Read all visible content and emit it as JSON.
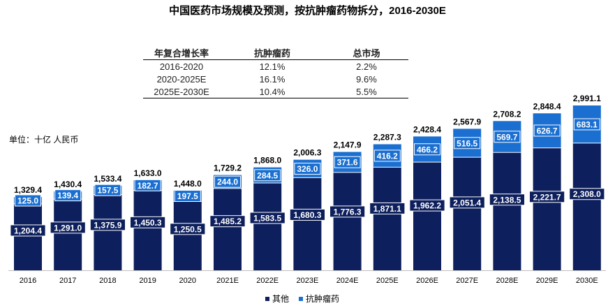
{
  "title": "中国医药市场规模及预测，按抗肿瘤药物拆分，2016-2030E",
  "unit_label": "单位：十亿 人民币",
  "cagr_table": {
    "headers": [
      "年复合增长率",
      "抗肿瘤药",
      "总市场"
    ],
    "rows": [
      [
        "2016-2020",
        "12.1%",
        "2.2%"
      ],
      [
        "2020-2025E",
        "16.1%",
        "9.6%"
      ],
      [
        "2025E-2030E",
        "10.4%",
        "5.5%"
      ]
    ]
  },
  "colors": {
    "other": "#0d1f5c",
    "oncology": "#1a6fd1"
  },
  "chart_data": {
    "type": "bar",
    "stacked": true,
    "categories": [
      "2016",
      "2017",
      "2018",
      "2019",
      "2020",
      "2021E",
      "2022E",
      "2023E",
      "2024E",
      "2025E",
      "2026E",
      "2027E",
      "2028E",
      "2029E",
      "2030E"
    ],
    "series": [
      {
        "name": "其他",
        "values": [
          1204.4,
          1291.0,
          1375.9,
          1450.3,
          1250.5,
          1485.2,
          1583.5,
          1680.3,
          1776.3,
          1871.1,
          1962.2,
          2051.4,
          2138.5,
          2221.7,
          2308.0
        ],
        "labels": [
          "1,204.4",
          "1,291.0",
          "1,375.9",
          "1,450.3",
          "1,250.5",
          "1,485.2",
          "1,583.5",
          "1,680.3",
          "1,776.3",
          "1,871.1",
          "1,962.2",
          "2,051.4",
          "2,138.5",
          "2,221.7",
          "2,308.0"
        ]
      },
      {
        "name": "抗肿瘤药",
        "values": [
          125.0,
          139.4,
          157.5,
          182.7,
          197.5,
          244.0,
          284.5,
          326.0,
          371.6,
          416.2,
          466.2,
          516.5,
          569.7,
          626.7,
          683.1
        ],
        "labels": [
          "125.0",
          "139.4",
          "157.5",
          "182.7",
          "197.5",
          "244.0",
          "284.5",
          "326.0",
          "371.6",
          "416.2",
          "466.2",
          "516.5",
          "569.7",
          "626.7",
          "683.1"
        ]
      }
    ],
    "totals": [
      1329.4,
      1430.4,
      1533.4,
      1633.0,
      1448.0,
      1729.2,
      1868.0,
      2006.3,
      2147.9,
      2287.3,
      2428.4,
      2567.9,
      2708.2,
      2848.4,
      2991.1
    ],
    "total_labels": [
      "1,329.4",
      "1,430.4",
      "1,533.4",
      "1,633.0",
      "1,448.0",
      "1,729.2",
      "1,868.0",
      "2,006.3",
      "2,147.9",
      "2,287.3",
      "2,428.4",
      "2,567.9",
      "2,708.2",
      "2,848.4",
      "2,991.1"
    ],
    "ylim": [
      0,
      2991.1
    ],
    "legend": [
      "其他",
      "抗肿瘤药"
    ]
  }
}
